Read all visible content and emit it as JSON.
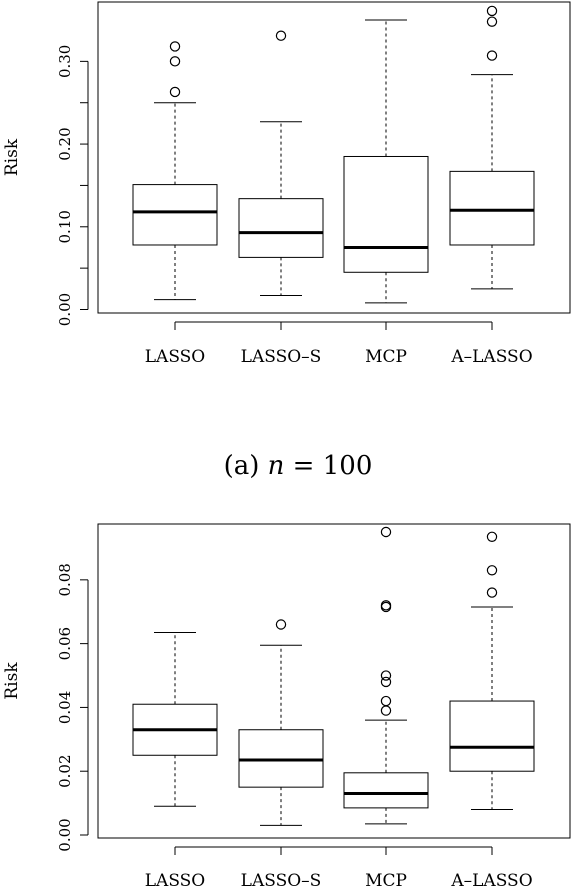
{
  "chart_data": [
    {
      "type": "box",
      "caption": "(a) n = 100",
      "xlabel": "",
      "ylabel": "Risk",
      "ylim": [
        0.0,
        0.35
      ],
      "yticks": [
        "0.00",
        "0.10",
        "0.20",
        "0.30"
      ],
      "ytick_values": [
        0.0,
        0.05,
        0.1,
        0.15,
        0.2,
        0.25,
        0.3
      ],
      "ytick_labels": [
        "0.00",
        "",
        "0.10",
        "",
        "0.20",
        "",
        "0.30"
      ],
      "categories": [
        "LASSO",
        "LASSO–S",
        "MCP",
        "A–LASSO"
      ],
      "boxes": [
        {
          "lower_whisker": 0.012,
          "q1": 0.078,
          "median": 0.118,
          "q3": 0.151,
          "upper_whisker": 0.25,
          "outliers": [
            0.263,
            0.3,
            0.318
          ]
        },
        {
          "lower_whisker": 0.017,
          "q1": 0.063,
          "median": 0.093,
          "q3": 0.134,
          "upper_whisker": 0.227,
          "outliers": [
            0.331
          ]
        },
        {
          "lower_whisker": 0.008,
          "q1": 0.045,
          "median": 0.075,
          "q3": 0.185,
          "upper_whisker": 0.35,
          "outliers": []
        },
        {
          "lower_whisker": 0.025,
          "q1": 0.078,
          "median": 0.12,
          "q3": 0.167,
          "upper_whisker": 0.284,
          "outliers": [
            0.307,
            0.348,
            0.361
          ]
        }
      ]
    },
    {
      "type": "box",
      "caption": "",
      "xlabel": "",
      "ylabel": "Risk",
      "ylim": [
        0.0,
        0.095
      ],
      "ytick_values": [
        0.0,
        0.02,
        0.04,
        0.06,
        0.08
      ],
      "ytick_labels": [
        "0.00",
        "0.02",
        "0.04",
        "0.06",
        "0.08"
      ],
      "categories": [
        "LASSO",
        "LASSO–S",
        "MCP",
        "A–LASSO"
      ],
      "boxes": [
        {
          "lower_whisker": 0.009,
          "q1": 0.025,
          "median": 0.033,
          "q3": 0.041,
          "upper_whisker": 0.0635,
          "outliers": []
        },
        {
          "lower_whisker": 0.003,
          "q1": 0.015,
          "median": 0.0235,
          "q3": 0.033,
          "upper_whisker": 0.0595,
          "outliers": [
            0.066
          ]
        },
        {
          "lower_whisker": 0.0035,
          "q1": 0.0085,
          "median": 0.013,
          "q3": 0.0195,
          "upper_whisker": 0.036,
          "outliers": [
            0.039,
            0.042,
            0.048,
            0.05,
            0.0715,
            0.072,
            0.095
          ]
        },
        {
          "lower_whisker": 0.008,
          "q1": 0.02,
          "median": 0.0275,
          "q3": 0.042,
          "upper_whisker": 0.0715,
          "outliers": [
            0.076,
            0.083,
            0.0935
          ]
        }
      ]
    }
  ]
}
